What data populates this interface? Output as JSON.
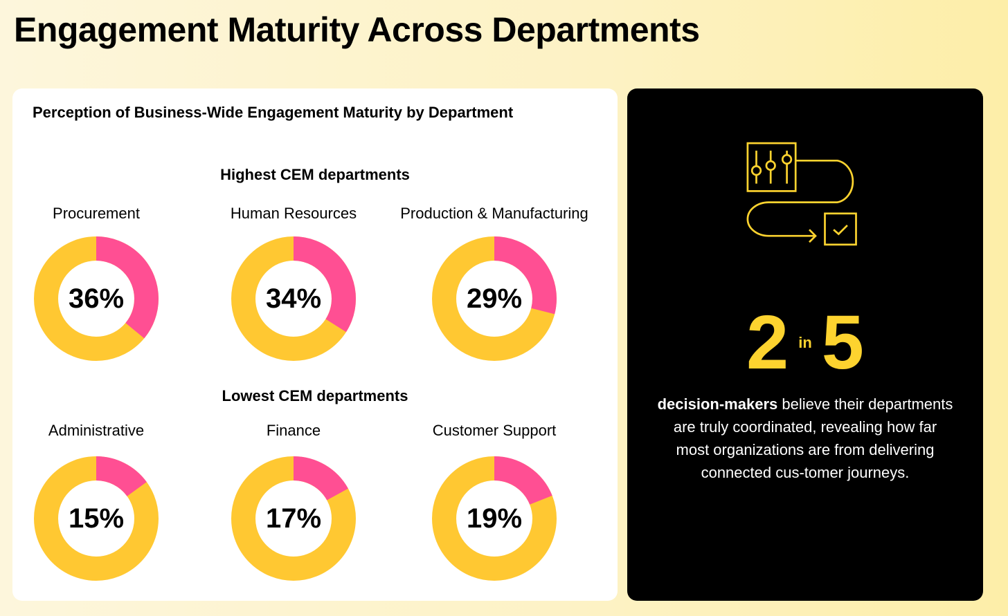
{
  "title": "Engagement Maturity Across Departments",
  "colors": {
    "highlight": "#FF4F93",
    "remainder": "#FFC832",
    "accent": "#FDD32F"
  },
  "chart_data": {
    "type": "pie",
    "title": "Perception of Business-Wide Engagement Maturity by Department",
    "groups": [
      {
        "heading": "Highest CEM departments",
        "items": [
          {
            "name": "Procurement",
            "value": 36,
            "label": "36%"
          },
          {
            "name": "Human Resources",
            "value": 34,
            "label": "34%"
          },
          {
            "name": "Production & Manufacturing",
            "value": 29,
            "label": "29%"
          }
        ]
      },
      {
        "heading": "Lowest CEM departments",
        "items": [
          {
            "name": "Administrative",
            "value": 15,
            "label": "15%"
          },
          {
            "name": "Finance",
            "value": 17,
            "label": "17%"
          },
          {
            "name": "Customer Support",
            "value": 19,
            "label": "19%"
          }
        ]
      }
    ]
  },
  "stat": {
    "num": "2",
    "in": "in",
    "den": "5",
    "bold": "decision-makers",
    "text": " believe their departments are truly coordinated, revealing how far most organizations are from delivering connected cus-tomer journeys."
  }
}
